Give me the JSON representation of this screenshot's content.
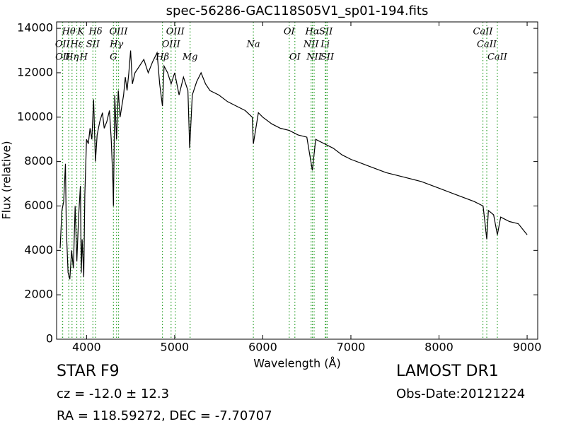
{
  "chart_data": {
    "type": "line",
    "title": "spec-56286-GAC118S05V1_sp01-194.fits",
    "xlabel": "Wavelength (Å)",
    "ylabel": "Flux (relative)",
    "color": "#000000",
    "xlim": [
      3660,
      9120
    ],
    "ylim": [
      0,
      14290
    ],
    "xticks": [
      4000,
      5000,
      6000,
      7000,
      8000,
      9000
    ],
    "yticks": [
      0,
      2000,
      4000,
      6000,
      8000,
      10000,
      12000,
      14000
    ],
    "x": [
      3700,
      3720,
      3740,
      3760,
      3770,
      3790,
      3810,
      3830,
      3850,
      3870,
      3890,
      3910,
      3930,
      3940,
      3950,
      3968,
      3980,
      4000,
      4020,
      4040,
      4060,
      4080,
      4101,
      4120,
      4150,
      4180,
      4200,
      4230,
      4260,
      4280,
      4300,
      4305,
      4320,
      4340,
      4360,
      4380,
      4400,
      4420,
      4440,
      4460,
      4480,
      4500,
      4520,
      4550,
      4600,
      4650,
      4700,
      4750,
      4800,
      4830,
      4861,
      4880,
      4920,
      4960,
      5000,
      5050,
      5100,
      5150,
      5170,
      5200,
      5250,
      5300,
      5350,
      5400,
      5500,
      5600,
      5700,
      5800,
      5880,
      5893,
      5950,
      6000,
      6100,
      6200,
      6300,
      6400,
      6500,
      6563,
      6600,
      6700,
      6800,
      6900,
      7000,
      7200,
      7400,
      7600,
      7800,
      8000,
      8200,
      8400,
      8500,
      8520,
      8542,
      8560,
      8620,
      8662,
      8700,
      8800,
      8900,
      9000
    ],
    "values": [
      4100,
      5800,
      6200,
      7900,
      5000,
      3000,
      2700,
      4000,
      3200,
      6000,
      3500,
      5500,
      6900,
      3000,
      4500,
      2800,
      6500,
      9000,
      8800,
      9500,
      9000,
      10800,
      8000,
      9200,
      9800,
      10200,
      9500,
      9800,
      10300,
      9000,
      7000,
      6000,
      11000,
      9000,
      11200,
      10000,
      10500,
      11000,
      11800,
      11200,
      12000,
      13000,
      11500,
      12000,
      12300,
      12600,
      12000,
      12500,
      12900,
      11500,
      10500,
      12300,
      12000,
      11500,
      12000,
      11000,
      11800,
      11200,
      8600,
      11000,
      11600,
      12000,
      11500,
      11200,
      11000,
      10700,
      10500,
      10300,
      10000,
      8800,
      10200,
      10000,
      9700,
      9500,
      9400,
      9200,
      9100,
      7600,
      9000,
      8800,
      8600,
      8300,
      8100,
      7800,
      7500,
      7300,
      7100,
      6800,
      6500,
      6200,
      6000,
      5300,
      4500,
      5800,
      5600,
      4700,
      5500,
      5300,
      5200,
      4700
    ],
    "line_color": "#2ca02c",
    "spectral_lines": [
      [
        {
          "label": "Hθ",
          "wavelength": 3798
        },
        {
          "label": "K",
          "wavelength": 3934
        },
        {
          "label": "Hδ",
          "wavelength": 4102
        },
        {
          "label": "OIII",
          "wavelength": 4363
        },
        {
          "label": "OIII",
          "wavelength": 5007
        },
        {
          "label": "OI",
          "wavelength": 6300
        },
        {
          "label": "Hα",
          "wavelength": 6563
        },
        {
          "label": "SII",
          "wavelength": 6717
        },
        {
          "label": "CaII",
          "wavelength": 8498
        }
      ],
      [
        {
          "label": "OII",
          "wavelength": 3727
        },
        {
          "label": "Hε",
          "wavelength": 3889
        },
        {
          "label": "SII",
          "wavelength": 4072
        },
        {
          "label": "Hγ",
          "wavelength": 4340
        },
        {
          "label": "OIII",
          "wavelength": 4959
        },
        {
          "label": "Na",
          "wavelength": 5893
        },
        {
          "label": "NII",
          "wavelength": 6548
        },
        {
          "label": "Li",
          "wavelength": 6708
        },
        {
          "label": "CaII",
          "wavelength": 8542
        }
      ],
      [
        {
          "label": "OII",
          "wavelength": 3729
        },
        {
          "label": "Hη",
          "wavelength": 3835
        },
        {
          "label": "H",
          "wavelength": 3968
        },
        {
          "label": "G",
          "wavelength": 4305
        },
        {
          "label": "Hβ",
          "wavelength": 4861
        },
        {
          "label": "Mg",
          "wavelength": 5175
        },
        {
          "label": "OI",
          "wavelength": 6364
        },
        {
          "label": "NII",
          "wavelength": 6583
        },
        {
          "label": "SII",
          "wavelength": 6731
        },
        {
          "label": "CaII",
          "wavelength": 8662
        }
      ]
    ]
  },
  "footer": {
    "object_class": "STAR",
    "subclass": "F9",
    "redshift": "cz = -12.0 ± 12.3",
    "coords": "RA = 118.59272, DEC = -7.70707",
    "survey": "LAMOST DR1",
    "obs_date": "Obs-Date:20121224"
  }
}
